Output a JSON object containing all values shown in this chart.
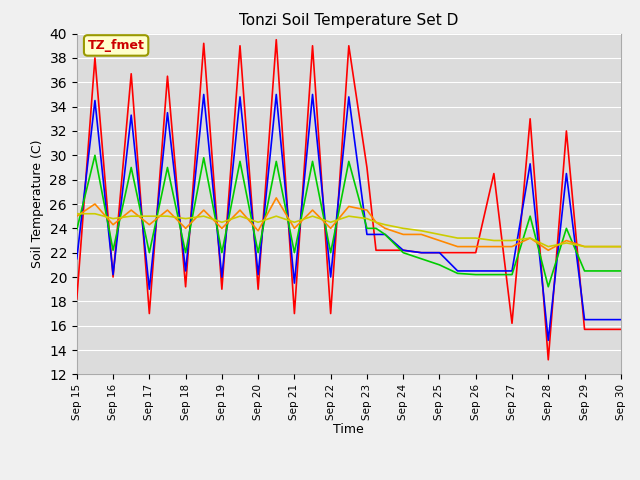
{
  "title": "Tonzi Soil Temperature Set D",
  "xlabel": "Time",
  "ylabel": "Soil Temperature (C)",
  "annotation": "TZ_fmet",
  "ylim": [
    12,
    40
  ],
  "background_color": "#dcdcdc",
  "grid_color": "#ffffff",
  "x_labels": [
    "Sep 15",
    "Sep 16",
    "Sep 17",
    "Sep 18",
    "Sep 19",
    "Sep 20",
    "Sep 21",
    "Sep 22",
    "Sep 23",
    "Sep 24",
    "Sep 25",
    "Sep 26",
    "Sep 27",
    "Sep 28",
    "Sep 29",
    "Sep 30"
  ],
  "series_colors": {
    "-2cm": "#ff0000",
    "-4cm": "#0000ff",
    "-8cm": "#00cc00",
    "-16cm": "#ff8800",
    "-32cm": "#cccc00"
  },
  "x_points": [
    0.0,
    0.5,
    1.0,
    1.5,
    2.0,
    2.5,
    3.0,
    3.5,
    4.0,
    4.5,
    5.0,
    5.5,
    6.0,
    6.5,
    7.0,
    7.5,
    8.0,
    8.25,
    8.5,
    9.0,
    9.5,
    10.0,
    10.5,
    11.0,
    11.5,
    12.0,
    12.5,
    13.0,
    13.5,
    14.0,
    14.5,
    15.0
  ],
  "y_2cm": [
    18.2,
    38.0,
    20.0,
    36.7,
    17.0,
    36.5,
    19.2,
    39.2,
    19.0,
    39.0,
    19.0,
    39.5,
    17.0,
    39.0,
    17.0,
    39.0,
    29.0,
    22.2,
    22.2,
    22.2,
    22.0,
    22.0,
    22.0,
    22.0,
    28.5,
    16.2,
    33.0,
    13.2,
    32.0,
    15.7,
    15.7,
    15.7
  ],
  "y_4cm": [
    21.5,
    34.5,
    20.2,
    33.3,
    19.0,
    33.5,
    20.5,
    35.0,
    20.0,
    34.8,
    20.2,
    35.0,
    19.5,
    35.0,
    20.0,
    34.8,
    23.5,
    23.5,
    23.5,
    22.2,
    22.0,
    22.0,
    20.5,
    20.5,
    20.5,
    20.5,
    29.3,
    14.8,
    28.5,
    16.5,
    16.5,
    16.5
  ],
  "y_8cm": [
    23.9,
    30.0,
    22.2,
    29.0,
    22.0,
    29.0,
    22.0,
    29.8,
    22.0,
    29.5,
    22.0,
    29.5,
    22.0,
    29.5,
    22.0,
    29.5,
    24.0,
    24.0,
    23.5,
    22.0,
    21.5,
    21.0,
    20.3,
    20.2,
    20.2,
    20.2,
    25.0,
    19.2,
    24.0,
    20.5,
    20.5,
    20.5
  ],
  "y_16cm": [
    25.0,
    26.0,
    24.3,
    25.5,
    24.3,
    25.5,
    24.0,
    25.5,
    24.0,
    25.5,
    23.8,
    26.5,
    24.0,
    25.5,
    24.0,
    25.8,
    25.5,
    24.5,
    24.0,
    23.5,
    23.5,
    23.0,
    22.5,
    22.5,
    22.5,
    22.5,
    23.2,
    22.2,
    23.0,
    22.5,
    22.5,
    22.5
  ],
  "y_32cm": [
    25.2,
    25.2,
    24.8,
    25.0,
    25.0,
    25.0,
    24.8,
    25.0,
    24.5,
    25.0,
    24.5,
    25.0,
    24.5,
    25.0,
    24.5,
    25.0,
    24.8,
    24.5,
    24.3,
    24.0,
    23.8,
    23.5,
    23.2,
    23.2,
    23.0,
    23.0,
    23.2,
    22.5,
    22.8,
    22.5,
    22.5,
    22.5
  ]
}
